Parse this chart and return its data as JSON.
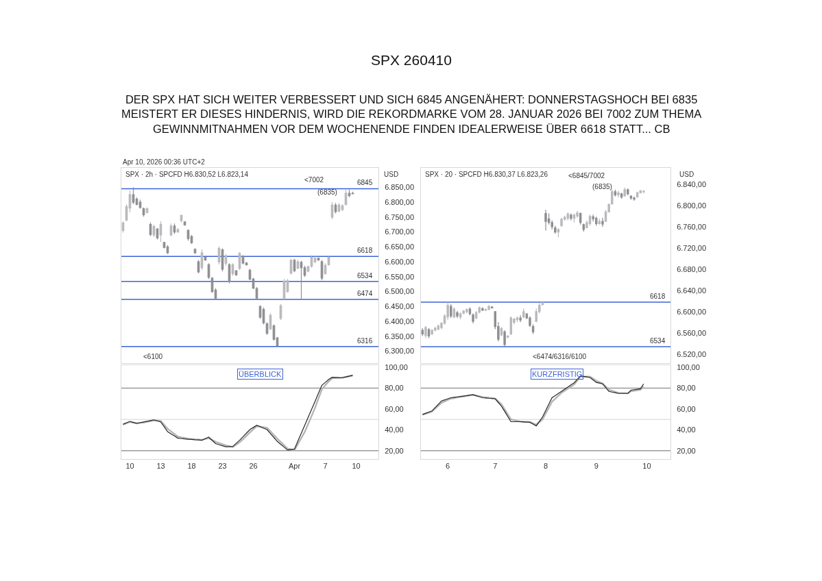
{
  "chart_data": [
    {
      "type": "candlestick",
      "title": "SPX 260410",
      "subtitle": "DER SPX HAT SICH WEITER VERBESSERT UND SICH 6845 ANGENÄHERT: DONNERSTAGSHOCH BEI 6835\nMEISTERT ER DIESES HINDERNIS, WIRD DIE REKORDMARKE VOM 28. JANUAR 2026 BEI 7002 ZUM THEMA\nGEWINNMITNAHMEN VOR DEM WOCHENENDE FINDEN IDEALERWEISE ÜBER 6618 STATT... CB",
      "categories": [
        null,
        null,
        null,
        null,
        null,
        null,
        null,
        null,
        null,
        null,
        null,
        null,
        null,
        null,
        null,
        null,
        null,
        null,
        null,
        null,
        null,
        null,
        null,
        null,
        null,
        null,
        null,
        null,
        null,
        null,
        null,
        null,
        null,
        null,
        null,
        null,
        null,
        null,
        null,
        null,
        null,
        null,
        null,
        null,
        null,
        null,
        null,
        null,
        null,
        null,
        null,
        null,
        null,
        null,
        null,
        null,
        null,
        null,
        null,
        null,
        null,
        null,
        null,
        null,
        null,
        null,
        null,
        null,
        null,
        null,
        null,
        null,
        null,
        null,
        null
      ],
      "ohlc": [
        [
          6705,
          6736,
          6698,
          6730
        ],
        [
          6740,
          6793,
          6736,
          6785
        ],
        [
          6780,
          6839,
          6766,
          6825
        ],
        [
          6825,
          6850,
          6793,
          6800
        ],
        [
          6810,
          6816,
          6789,
          6792
        ],
        [
          6800,
          6808,
          6778,
          6782
        ],
        [
          6778,
          6782,
          6751,
          6758
        ],
        [
          6765,
          6782,
          6762,
          6778
        ],
        [
          6725,
          6732,
          6686,
          6692
        ],
        [
          6690,
          6724,
          6683,
          6718
        ],
        [
          6710,
          6713,
          6675,
          6680
        ],
        [
          6690,
          6736,
          6667,
          6725
        ],
        [
          6665,
          6667,
          6645,
          6648
        ],
        [
          6650,
          6656,
          6626,
          6630
        ],
        [
          6690,
          6728,
          6686,
          6720
        ],
        [
          6720,
          6728,
          6694,
          6700
        ],
        [
          6700,
          6713,
          6698,
          6708
        ],
        [
          6738,
          6759,
          6732,
          6755
        ],
        [
          6734,
          6736,
          6721,
          6724
        ],
        [
          6705,
          6709,
          6671,
          6678
        ],
        [
          6685,
          6690,
          6660,
          6664
        ],
        [
          6642,
          6645,
          6626,
          6630
        ],
        [
          6600,
          6606,
          6561,
          6566
        ],
        [
          6580,
          6641,
          6572,
          6630
        ],
        [
          6615,
          6618,
          6603,
          6606
        ],
        [
          6590,
          6595,
          6542,
          6548
        ],
        [
          6545,
          6549,
          6496,
          6500
        ],
        [
          6505,
          6511,
          6473,
          6478
        ],
        [
          6600,
          6652,
          6591,
          6645
        ],
        [
          6640,
          6645,
          6568,
          6575
        ],
        [
          6595,
          6626,
          6587,
          6620
        ],
        [
          6590,
          6595,
          6527,
          6535
        ],
        [
          6560,
          6595,
          6553,
          6590
        ],
        [
          6570,
          6572,
          6553,
          6556
        ],
        [
          6578,
          6633,
          6572,
          6628
        ],
        [
          6618,
          6622,
          6591,
          6596
        ],
        [
          6596,
          6599,
          6587,
          6590
        ],
        [
          6572,
          6576,
          6538,
          6542
        ],
        [
          6542,
          6546,
          6508,
          6512
        ],
        [
          6510,
          6515,
          6473,
          6478
        ],
        [
          6450,
          6454,
          6409,
          6414
        ],
        [
          6440,
          6447,
          6390,
          6395
        ],
        [
          6392,
          6397,
          6355,
          6360
        ],
        [
          6375,
          6428,
          6371,
          6420
        ],
        [
          6385,
          6390,
          6336,
          6340
        ],
        [
          6345,
          6348,
          6313,
          6318
        ],
        [
          6410,
          6458,
          6405,
          6452
        ],
        [
          6478,
          6542,
          6473,
          6535
        ],
        [
          6500,
          6542,
          6496,
          6536
        ],
        [
          6562,
          6610,
          6557,
          6605
        ],
        [
          6605,
          6610,
          6565,
          6570
        ],
        [
          6578,
          6606,
          6576,
          6600
        ],
        [
          6598,
          6603,
          6473,
          6580
        ],
        [
          6580,
          6587,
          6549,
          6555
        ],
        [
          6568,
          6587,
          6565,
          6584
        ],
        [
          6585,
          6622,
          6580,
          6615
        ],
        [
          6600,
          6618,
          6595,
          6612
        ],
        [
          6612,
          6614,
          6603,
          6606
        ],
        [
          6600,
          6606,
          6538,
          6545
        ],
        [
          6560,
          6595,
          6557,
          6588
        ],
        [
          6590,
          6618,
          6587,
          6615
        ],
        [
          6750,
          6800,
          6743,
          6790
        ],
        [
          6790,
          6797,
          6762,
          6768
        ],
        [
          6770,
          6797,
          6766,
          6790
        ],
        [
          6775,
          6793,
          6770,
          6788
        ],
        [
          6792,
          6842,
          6789,
          6830
        ],
        [
          6830,
          6842,
          6816,
          6822
        ],
        [
          6830,
          6835,
          6827,
          6828
        ],
        null,
        null,
        null,
        null,
        null,
        null,
        null
      ],
      "colors": [
        "#b9b9bd",
        "#b9b9bd",
        "#b9b9bd",
        "#8e8e93",
        "#8e8e93",
        "#8e8e93",
        "#8e8e93",
        "#b9b9bd",
        "#8e8e93",
        "#b9b9bd",
        "#8e8e93",
        "#b9b9bd",
        "#8e8e93",
        "#8e8e93",
        "#b9b9bd",
        "#8e8e93",
        "#b9b9bd",
        "#b9b9bd",
        "#8e8e93",
        "#8e8e93",
        "#8e8e93",
        "#8e8e93",
        "#8e8e93",
        "#b9b9bd",
        "#8e8e93",
        "#8e8e93",
        "#8e8e93",
        "#8e8e93",
        "#b9b9bd",
        "#8e8e93",
        "#b9b9bd",
        "#8e8e93",
        "#b9b9bd",
        "#8e8e93",
        "#b9b9bd",
        "#8e8e93",
        "#8e8e93",
        "#8e8e93",
        "#8e8e93",
        "#8e8e93",
        "#8e8e93",
        "#8e8e93",
        "#8e8e93",
        "#b9b9bd",
        "#8e8e93",
        "#8e8e93",
        "#b9b9bd",
        "#b9b9bd",
        "#b9b9bd",
        "#b9b9bd",
        "#8e8e93",
        "#b9b9bd",
        "#8e8e93",
        "#8e8e93",
        "#b9b9bd",
        "#b9b9bd",
        "#b9b9bd",
        "#8e8e93",
        "#8e8e93",
        "#b9b9bd",
        "#b9b9bd",
        "#b9b9bd",
        "#8e8e93",
        "#b9b9bd",
        "#b9b9bd",
        "#b9b9bd",
        "#8e8e93",
        "#8e8e93",
        null,
        null,
        null,
        null,
        null,
        null,
        null
      ],
      "ylim": [
        6260,
        6915
      ],
      "yticks": [
        {
          "value": 6300,
          "label": "6.300,00"
        },
        {
          "value": 6350,
          "label": "6.350,00"
        },
        {
          "value": 6400,
          "label": "6.400,00"
        },
        {
          "value": 6450,
          "label": "6.450,00"
        },
        {
          "value": 6500,
          "label": "6.500,00"
        },
        {
          "value": 6550,
          "label": "6.550,00"
        },
        {
          "value": 6600,
          "label": "6.600,00"
        },
        {
          "value": 6650,
          "label": "6.650,00"
        },
        {
          "value": 6700,
          "label": "6.700,00"
        },
        {
          "value": 6750,
          "label": "6.750,00"
        },
        {
          "value": 6800,
          "label": "6.800,00"
        },
        {
          "value": 6850,
          "label": "6.850,00"
        }
      ],
      "tick_labels": "y",
      "ref_lines": [
        {
          "axis": "y",
          "value": 6845,
          "label": "6845",
          "color": "#3d63d6"
        },
        {
          "axis": "y",
          "value": 6618,
          "label": "6618",
          "color": "#3d63d6"
        },
        {
          "axis": "y",
          "value": 6534,
          "label": "6534",
          "color": "#3d63d6"
        },
        {
          "axis": "y",
          "value": 6474,
          "label": "6474",
          "color": "#3d63d6"
        },
        {
          "axis": "y",
          "value": 6316,
          "label": "6316",
          "color": "#3d63d6"
        }
      ],
      "annotations": [
        "SPX · 2h · SPCFD H6.830,52 L6.823,14",
        "<7002",
        "<6100",
        "USD",
        "Apr 10, 2026 00:36 UTC+2",
        "(6835)"
      ]
    },
    {
      "type": "candlestick",
      "categories": [
        null,
        null,
        null,
        null,
        null,
        null,
        null,
        null,
        null,
        null,
        null,
        null,
        null,
        null,
        null,
        null,
        null,
        null,
        null,
        null,
        null,
        null,
        null,
        null,
        null,
        null,
        null,
        null,
        null,
        null,
        null,
        null,
        null,
        null,
        null,
        null,
        null,
        null,
        null,
        null,
        null,
        null,
        null,
        null,
        null,
        null,
        null,
        null,
        null,
        null,
        null,
        null,
        null,
        null,
        null,
        null,
        null,
        null,
        null,
        null,
        null,
        null,
        null,
        null,
        null,
        null,
        null,
        null,
        null,
        null,
        null,
        null,
        null,
        null,
        null,
        null,
        null,
        null,
        null
      ],
      "ohlc": [
        [
          6565,
          6569,
          6554,
          6558
        ],
        [
          6555,
          6573,
          6550,
          6570
        ],
        [
          6566,
          6569,
          6550,
          6554
        ],
        [
          6558,
          6567,
          6556,
          6565
        ],
        [
          6565,
          6571,
          6563,
          6569
        ],
        [
          6567,
          6576,
          6565,
          6573
        ],
        [
          6570,
          6580,
          6567,
          6578
        ],
        [
          6578,
          6595,
          6576,
          6592
        ],
        [
          6590,
          6618,
          6584,
          6612
        ],
        [
          6610,
          6614,
          6588,
          6592
        ],
        [
          6590,
          6608,
          6588,
          6605
        ],
        [
          6598,
          6601,
          6588,
          6592
        ],
        [
          6590,
          6599,
          6586,
          6596
        ],
        [
          6597,
          6603,
          6595,
          6601
        ],
        [
          6600,
          6606,
          6597,
          6604
        ],
        [
          6605,
          6608,
          6593,
          6596
        ],
        [
          6594,
          6597,
          6578,
          6582
        ],
        [
          6588,
          6601,
          6586,
          6598
        ],
        [
          6599,
          6610,
          6597,
          6607
        ],
        [
          6606,
          6608,
          6601,
          6603
        ],
        [
          6603,
          6606,
          6601,
          6604
        ],
        [
          6604,
          6612,
          6603,
          6610
        ],
        [
          6609,
          6610,
          6606,
          6607
        ],
        [
          6600,
          6601,
          6567,
          6572
        ],
        [
          6572,
          6580,
          6544,
          6548
        ],
        [
          6556,
          6571,
          6554,
          6568
        ],
        [
          6562,
          6565,
          6535,
          6538
        ],
        [
          6552,
          6556,
          6550,
          6554
        ],
        [
          6558,
          6591,
          6556,
          6588
        ],
        [
          6580,
          6588,
          6576,
          6586
        ],
        [
          6585,
          6591,
          6580,
          6588
        ],
        [
          6588,
          6593,
          6580,
          6584
        ],
        [
          6590,
          6606,
          6588,
          6600
        ],
        [
          6596,
          6597,
          6586,
          6588
        ],
        [
          6588,
          6591,
          6571,
          6574
        ],
        [
          6572,
          6576,
          6558,
          6562
        ],
        [
          6582,
          6606,
          6580,
          6600
        ],
        [
          6600,
          6616,
          6597,
          6612
        ],
        [
          6613,
          6618,
          6612,
          6617
        ],
        [
          6785,
          6792,
          6753,
          6770
        ],
        [
          6775,
          6785,
          6764,
          6768
        ],
        [
          6768,
          6772,
          6755,
          6760
        ],
        [
          6758,
          6762,
          6747,
          6750
        ],
        [
          6750,
          6757,
          6740,
          6755
        ],
        [
          6762,
          6777,
          6760,
          6774
        ],
        [
          6774,
          6781,
          6772,
          6778
        ],
        [
          6776,
          6787,
          6772,
          6784
        ],
        [
          6782,
          6785,
          6772,
          6776
        ],
        [
          6776,
          6785,
          6768,
          6782
        ],
        [
          6780,
          6790,
          6777,
          6786
        ],
        [
          6785,
          6787,
          6764,
          6768
        ],
        [
          6764,
          6766,
          6751,
          6755
        ],
        [
          6758,
          6772,
          6757,
          6768
        ],
        [
          6766,
          6783,
          6762,
          6780
        ],
        [
          6779,
          6783,
          6770,
          6775
        ],
        [
          6776,
          6779,
          6762,
          6766
        ],
        [
          6766,
          6775,
          6764,
          6770
        ],
        [
          6770,
          6777,
          6760,
          6765
        ],
        [
          6770,
          6792,
          6770,
          6788
        ],
        [
          6788,
          6804,
          6787,
          6802
        ],
        [
          6803,
          6830,
          6802,
          6826
        ],
        [
          6826,
          6830,
          6817,
          6820
        ],
        [
          6820,
          6828,
          6815,
          6824
        ],
        [
          6822,
          6824,
          6813,
          6816
        ],
        [
          6818,
          6834,
          6817,
          6830
        ],
        [
          6830,
          6832,
          6819,
          6822
        ],
        [
          6818,
          6819,
          6811,
          6814
        ],
        [
          6814,
          6817,
          6809,
          6812
        ],
        [
          6816,
          6826,
          6815,
          6824
        ],
        [
          6824,
          6829,
          6823,
          6828
        ],
        [
          6826,
          6829,
          6823,
          6827
        ],
        null,
        null,
        null,
        null,
        null,
        null,
        null,
        null
      ],
      "colors": [
        "#8e8e93",
        "#b9b9bd",
        "#8e8e93",
        "#b9b9bd",
        "#b9b9bd",
        "#b9b9bd",
        "#b9b9bd",
        "#b9b9bd",
        "#b9b9bd",
        "#8e8e93",
        "#b9b9bd",
        "#8e8e93",
        "#b9b9bd",
        "#b9b9bd",
        "#b9b9bd",
        "#8e8e93",
        "#8e8e93",
        "#b9b9bd",
        "#b9b9bd",
        "#8e8e93",
        "#b9b9bd",
        "#b9b9bd",
        "#8e8e93",
        "#8e8e93",
        "#8e8e93",
        "#b9b9bd",
        "#8e8e93",
        "#b9b9bd",
        "#b9b9bd",
        "#b9b9bd",
        "#b9b9bd",
        "#8e8e93",
        "#b9b9bd",
        "#8e8e93",
        "#8e8e93",
        "#8e8e93",
        "#b9b9bd",
        "#b9b9bd",
        "#b9b9bd",
        "#8e8e93",
        "#8e8e93",
        "#8e8e93",
        "#8e8e93",
        "#b9b9bd",
        "#b9b9bd",
        "#b9b9bd",
        "#b9b9bd",
        "#8e8e93",
        "#b9b9bd",
        "#b9b9bd",
        "#8e8e93",
        "#8e8e93",
        "#b9b9bd",
        "#b9b9bd",
        "#8e8e93",
        "#8e8e93",
        "#b9b9bd",
        "#8e8e93",
        "#b9b9bd",
        "#b9b9bd",
        "#b9b9bd",
        "#8e8e93",
        "#b9b9bd",
        "#8e8e93",
        "#b9b9bd",
        "#8e8e93",
        "#8e8e93",
        "#8e8e93",
        "#b9b9bd",
        "#b9b9bd",
        "#b9b9bd",
        null,
        null,
        null,
        null,
        null,
        null,
        null,
        null
      ],
      "ylim": [
        6503,
        6871
      ],
      "yticks": [
        {
          "value": 6520,
          "label": "6.520,00"
        },
        {
          "value": 6560,
          "label": "6.560,00"
        },
        {
          "value": 6600,
          "label": "6.600,00"
        },
        {
          "value": 6640,
          "label": "6.640,00"
        },
        {
          "value": 6680,
          "label": "6.680,00"
        },
        {
          "value": 6720,
          "label": "6.720,00"
        },
        {
          "value": 6760,
          "label": "6.760,00"
        },
        {
          "value": 6800,
          "label": "6.800,00"
        },
        {
          "value": 6840,
          "label": "6.840,00"
        }
      ],
      "tick_labels": "y",
      "ref_lines": [
        {
          "axis": "y",
          "value": 6618,
          "label": "6618",
          "color": "#3d63d6"
        },
        {
          "axis": "y",
          "value": 6534,
          "label": "6534",
          "color": "#3d63d6"
        }
      ],
      "annotations": [
        "SPX · 20 · SPCFD H6.830,37 L6.823,26",
        "<6845/7002",
        "<6474/6316/6100",
        "USD",
        "(6835)"
      ]
    },
    {
      "type": "line",
      "categories": [
        null,
        null,
        "10",
        null,
        null,
        null,
        null,
        null,
        null,
        null,
        null,
        "13",
        null,
        null,
        null,
        null,
        null,
        null,
        null,
        null,
        "18",
        null,
        null,
        null,
        null,
        null,
        null,
        null,
        null,
        "23",
        null,
        null,
        null,
        null,
        null,
        null,
        null,
        null,
        "26",
        null,
        null,
        null,
        null,
        null,
        null,
        null,
        null,
        null,
        null,
        null,
        "Apr",
        null,
        null,
        null,
        null,
        null,
        null,
        null,
        null,
        "7",
        null,
        null,
        null,
        null,
        null,
        null,
        null,
        null,
        "10",
        null,
        null,
        null,
        null,
        null,
        null
      ],
      "ylim": [
        12,
        102
      ],
      "yticks": [
        {
          "value": 20,
          "label": "20,00"
        },
        {
          "value": 40,
          "label": "40,00"
        },
        {
          "value": 60,
          "label": "60,00"
        },
        {
          "value": 80,
          "label": "80,00"
        },
        {
          "value": 100,
          "label": "100,00"
        }
      ],
      "series": [
        {
          "color": "#b4b4b4",
          "values": [
            45,
            46.3,
            47.5,
            47,
            46.5,
            46.8,
            47,
            47.7,
            48.3,
            49,
            48.8,
            48.5,
            44.8,
            41,
            38.5,
            36,
            33.5,
            32.8,
            32.2,
            31.5,
            31.3,
            31,
            30.8,
            30.5,
            31.3,
            32,
            30.3,
            28.5,
            27.3,
            26.2,
            25,
            24.3,
            23.5,
            25.8,
            28,
            31.2,
            34.3,
            37.5,
            40.5,
            43.5,
            43,
            42.5,
            42,
            38.5,
            35,
            31.5,
            28.3,
            25.2,
            22,
            21.3,
            20.5,
            26.3,
            32.2,
            38,
            45.7,
            53.3,
            61,
            70,
            79,
            82.8,
            86.5,
            89.5,
            89.7,
            89.8,
            90,
            90.7,
            91.3,
            92,
            null,
            null,
            null,
            null,
            null,
            null,
            null
          ]
        },
        {
          "color": "#262626",
          "values": [
            45.4,
            46.8,
            48.1,
            47.1,
            46,
            46.8,
            47.5,
            48.2,
            48.9,
            49.6,
            48.6,
            47.5,
            42.9,
            38.2,
            36.1,
            34.1,
            32,
            31.7,
            31.3,
            31,
            30.8,
            30.5,
            30.3,
            30,
            31.5,
            33,
            29.9,
            26.8,
            25.8,
            24.7,
            23.7,
            23.9,
            24,
            27,
            30,
            33.4,
            36.8,
            40.2,
            42.3,
            44.4,
            43,
            41.6,
            40.2,
            36.4,
            32.7,
            28.9,
            26.1,
            23.4,
            20.6,
            21.1,
            21.6,
            29.2,
            36.8,
            44.4,
            52,
            59.6,
            67.2,
            75,
            82.7,
            85.5,
            88.3,
            90.4,
            90.3,
            90.1,
            90,
            90.8,
            91.6,
            92.4,
            null,
            null,
            null,
            null,
            null,
            null,
            null
          ]
        }
      ],
      "ref_lines": [
        {
          "axis": "y",
          "value": 80,
          "color": "#9a9a9a"
        },
        {
          "axis": "y",
          "value": 50,
          "color": "#e2e2e2"
        },
        {
          "axis": "y",
          "value": 20,
          "color": "#9a9a9a"
        }
      ],
      "annotations": [
        "ÜBERBLICK"
      ]
    },
    {
      "type": "line",
      "categories": [
        null,
        null,
        null,
        null,
        null,
        null,
        null,
        null,
        "6",
        null,
        null,
        null,
        null,
        null,
        null,
        null,
        null,
        null,
        null,
        null,
        null,
        null,
        null,
        "7",
        null,
        null,
        null,
        null,
        null,
        null,
        null,
        null,
        null,
        null,
        null,
        null,
        null,
        null,
        null,
        "8",
        null,
        null,
        null,
        null,
        null,
        null,
        null,
        null,
        null,
        null,
        null,
        null,
        null,
        null,
        null,
        "9",
        null,
        null,
        null,
        null,
        null,
        null,
        null,
        null,
        null,
        null,
        null,
        null,
        null,
        null,
        null,
        "10",
        null,
        null,
        null,
        null,
        null,
        null,
        null
      ],
      "ylim": [
        12,
        102
      ],
      "yticks": [
        {
          "value": 20,
          "label": "20,00"
        },
        {
          "value": 40,
          "label": "40,00"
        },
        {
          "value": 60,
          "label": "60,00"
        },
        {
          "value": 80,
          "label": "80,00"
        },
        {
          "value": 100,
          "label": "100,00"
        }
      ],
      "series": [
        {
          "color": "#b4b4b4",
          "values": [
            54.5,
            55.5,
            56.5,
            57.5,
            60.3,
            63.2,
            66,
            67.3,
            68.7,
            70,
            70.5,
            71,
            71.5,
            72,
            72.5,
            73,
            73.5,
            72.8,
            72.2,
            71.5,
            71.1,
            70.8,
            70.4,
            70,
            67.3,
            64.5,
            59.7,
            54.8,
            50,
            49.3,
            48.7,
            48,
            47.8,
            47.7,
            47.5,
            46.3,
            45,
            47.5,
            50,
            55.7,
            61.3,
            67,
            69.8,
            72.7,
            75.5,
            77.5,
            79.5,
            81.5,
            83.5,
            87.3,
            91,
            91,
            91,
            91,
            89,
            87,
            85.8,
            84.5,
            81.5,
            78.5,
            77.5,
            76.5,
            75.5,
            75.3,
            75.2,
            75,
            77,
            77.5,
            78,
            78.5,
            81.5,
            null,
            null,
            null,
            null,
            null,
            null,
            null,
            null
          ]
        },
        {
          "color": "#262626",
          "values": [
            54.8,
            55.9,
            57,
            58.1,
            61.3,
            64.5,
            67.7,
            68.7,
            69.8,
            70.8,
            71.2,
            71.6,
            72,
            72.4,
            72.8,
            73.3,
            73.7,
            72.7,
            71.8,
            70.8,
            70.6,
            70.3,
            70.1,
            69.8,
            66.2,
            62.6,
            57.7,
            52.7,
            47.8,
            47.8,
            47.8,
            47.8,
            47.6,
            47.4,
            47.2,
            45.5,
            43.8,
            48.1,
            52.4,
            58.5,
            64.7,
            70.8,
            72.8,
            74.9,
            76.9,
            79,
            81,
            83.1,
            85.1,
            88.4,
            91.7,
            91.2,
            90.7,
            90.2,
            87.9,
            85.5,
            84.8,
            84.1,
            80.5,
            76.9,
            76.2,
            75.6,
            74.9,
            74.9,
            74.9,
            74.9,
            78,
            78.5,
            78.9,
            79.4,
            84.1,
            null,
            null,
            null,
            null,
            null,
            null,
            null,
            null
          ]
        }
      ],
      "ref_lines": [
        {
          "axis": "y",
          "value": 80,
          "color": "#9a9a9a"
        },
        {
          "axis": "y",
          "value": 50,
          "color": "#e2e2e2"
        },
        {
          "axis": "y",
          "value": 20,
          "color": "#9a9a9a"
        }
      ],
      "annotations": [
        "KURZFRISTIG"
      ]
    }
  ]
}
